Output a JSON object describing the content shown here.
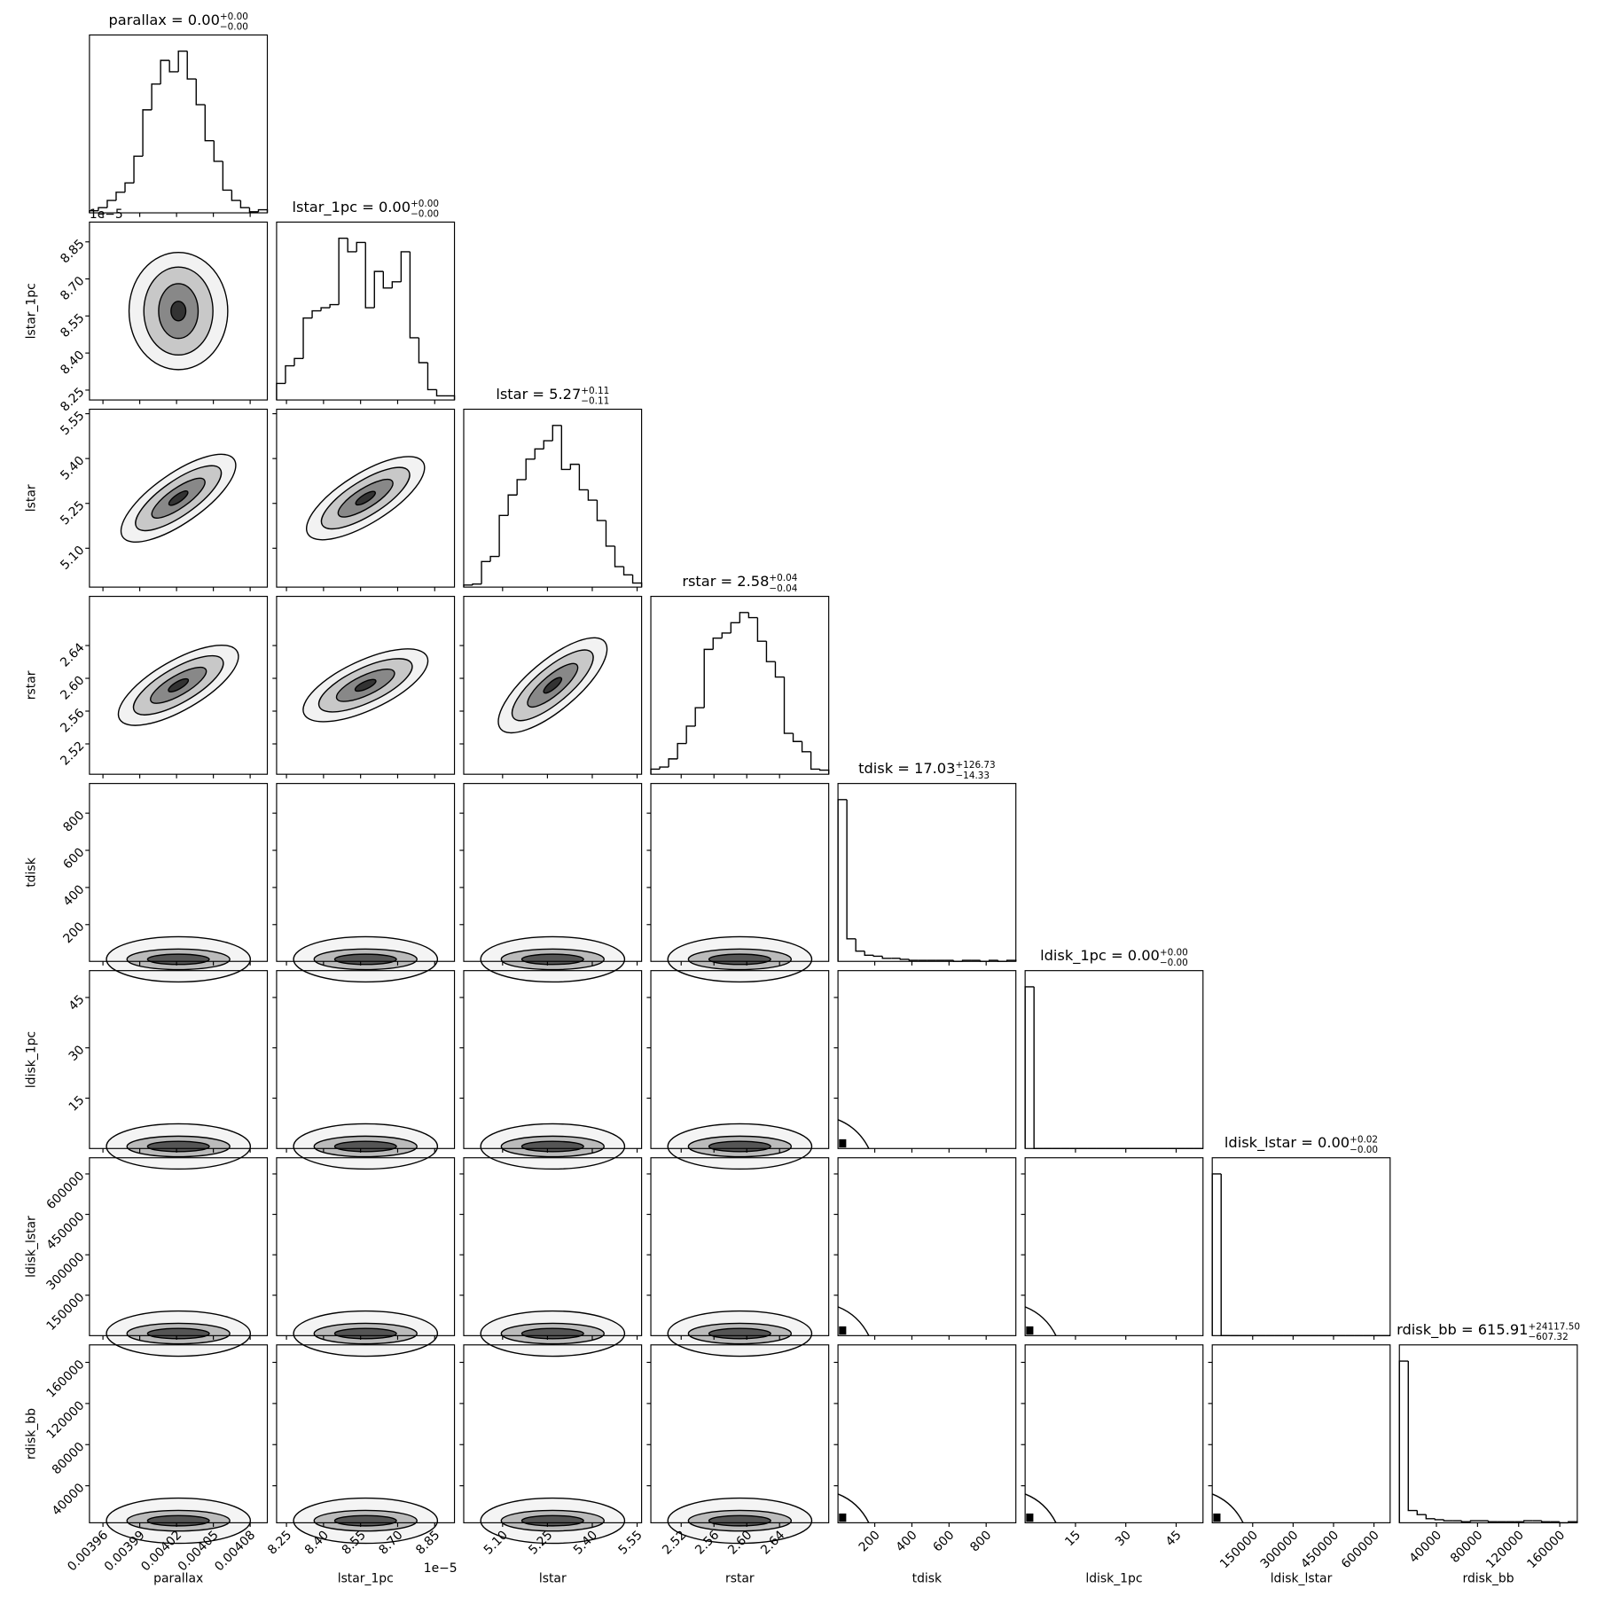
{
  "chart_data": {
    "type": "corner",
    "variables": [
      {
        "name": "parallax",
        "title": "parallax = 0.00",
        "upper": "+0.00",
        "lower": "−0.00",
        "lim": [
          0.003949,
          0.004094
        ],
        "ticks": [
          0.00396,
          0.00399,
          0.00402,
          0.00405,
          0.00408
        ],
        "counts": [
          2,
          5,
          12,
          20,
          29,
          55,
          100,
          125,
          148,
          137,
          157,
          130,
          105,
          70,
          50,
          22,
          12,
          5,
          1,
          3
        ]
      },
      {
        "name": "lstar_1pc",
        "title": "lstar_1pc = 0.00",
        "upper": "+0.00",
        "lower": "−0.00",
        "offset": "1e−5",
        "lim": [
          8.21e-05,
          8.93e-05
        ],
        "ticks": [
          {
            "value": 8.25e-05,
            "label": "8.25"
          },
          {
            "value": 8.4e-05,
            "label": "8.40"
          },
          {
            "value": 8.55e-05,
            "label": "8.55"
          },
          {
            "value": 8.7e-05,
            "label": "8.70"
          },
          {
            "value": 8.85e-05,
            "label": "8.85"
          }
        ],
        "counts": [
          16,
          33,
          40,
          79,
          86,
          89,
          92,
          156,
          143,
          152,
          89,
          124,
          108,
          114,
          143,
          60,
          36,
          10,
          4,
          4
        ]
      },
      {
        "name": "lstar",
        "title": "lstar = 5.27",
        "upper": "+0.11",
        "lower": "−0.11",
        "lim": [
          4.97,
          5.565
        ],
        "ticks": [
          {
            "value": 5.1,
            "label": "5.10"
          },
          5.25,
          {
            "value": 5.4,
            "label": "5.40"
          },
          5.55
        ],
        "counts": [
          2,
          3,
          25,
          30,
          70,
          90,
          105,
          125,
          135,
          143,
          158,
          115,
          120,
          95,
          85,
          65,
          40,
          20,
          12,
          4
        ]
      },
      {
        "name": "rstar",
        "title": "rstar = 2.58",
        "upper": "+0.04",
        "lower": "−0.04",
        "lim": [
          2.483,
          2.7
        ],
        "ticks": [
          2.52,
          2.56,
          {
            "value": 2.6,
            "label": "2.60"
          },
          2.64
        ],
        "counts": [
          5,
          7,
          15,
          30,
          47,
          65,
          122,
          133,
          138,
          148,
          158,
          153,
          130,
          110,
          95,
          40,
          32,
          22,
          5,
          4
        ]
      },
      {
        "name": "tdisk",
        "title": "tdisk = 17.03",
        "upper": "+126.73",
        "lower": "−14.33",
        "lim": [
          2,
          960
        ],
        "ticks": [
          200,
          400,
          600,
          800
        ],
        "counts": [
          158,
          22,
          10,
          6,
          5,
          3,
          3,
          2,
          1,
          1,
          1,
          1,
          1,
          0,
          1,
          1,
          0,
          1,
          0,
          1
        ]
      },
      {
        "name": "ldisk_1pc",
        "title": "ldisk_1pc = 0.00",
        "upper": "+0.00",
        "lower": "−0.00",
        "lim": [
          0,
          53
        ],
        "ticks": [
          15,
          30,
          45
        ],
        "counts": [
          158,
          0,
          0,
          0,
          0,
          0,
          0,
          0,
          0,
          0,
          0,
          0,
          0,
          0,
          0,
          0,
          0,
          0,
          0,
          0
        ]
      },
      {
        "name": "ldisk_lstar",
        "title": "ldisk_lstar = 0.00",
        "upper": "+0.02",
        "lower": "−0.00",
        "lim": [
          0,
          660000
        ],
        "ticks": [
          150000,
          300000,
          450000,
          600000
        ],
        "counts": [
          158,
          0,
          0,
          0,
          0,
          0,
          0,
          0,
          0,
          0,
          0,
          0,
          0,
          0,
          0,
          0,
          0,
          0,
          0,
          0
        ]
      },
      {
        "name": "rdisk_bb",
        "title": "rdisk_bb = 615.91",
        "upper": "+24117.50",
        "lower": "−607.32",
        "lim": [
          4000,
          177000
        ],
        "ticks": [
          40000,
          80000,
          120000,
          160000
        ],
        "counts": [
          158,
          12,
          8,
          4,
          3,
          2,
          2,
          1,
          2,
          2,
          1,
          1,
          1,
          1,
          2,
          2,
          1,
          1,
          0,
          1
        ]
      }
    ]
  }
}
